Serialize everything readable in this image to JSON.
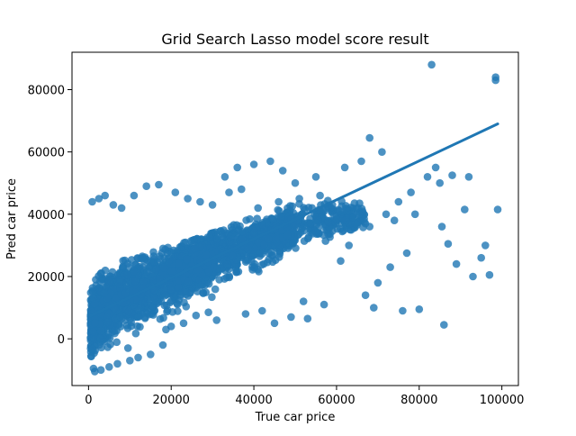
{
  "chart_data": {
    "type": "scatter",
    "title": "Grid Search Lasso model score result",
    "xlabel": "True car price",
    "ylabel": "Pred car price",
    "xlim": [
      -4000,
      104000
    ],
    "ylim": [
      -15000,
      92000
    ],
    "x_ticks": [
      0,
      20000,
      40000,
      60000,
      80000,
      100000
    ],
    "x_tick_labels": [
      "0",
      "20000",
      "40000",
      "60000",
      "80000",
      "100000"
    ],
    "y_ticks": [
      0,
      20000,
      40000,
      60000,
      80000
    ],
    "y_tick_labels": [
      "0",
      "20000",
      "40000",
      "60000",
      "80000"
    ],
    "grid": false,
    "point_color": "#1f77b4",
    "point_alpha": 0.8,
    "regression_line": {
      "x": [
        500,
        99000
      ],
      "y": [
        7400,
        69000
      ],
      "color": "#1f77b4"
    },
    "dense_cluster_description_points": {
      "x": [
        1000,
        3000,
        5000,
        8000,
        10000,
        12000,
        15000,
        18000,
        20000,
        22000,
        25000,
        28000,
        30000,
        33000,
        35000,
        38000,
        40000,
        43000,
        45000,
        48000,
        50000,
        53000,
        55000,
        58000,
        60000,
        63000,
        65000
      ],
      "y_center": [
        6000,
        8000,
        11000,
        13000,
        14500,
        15500,
        17500,
        19500,
        20500,
        21500,
        23000,
        24500,
        25500,
        27000,
        28500,
        30000,
        31000,
        32500,
        33500,
        35000,
        36000,
        37000,
        37500,
        38000,
        38500,
        39000,
        39500
      ],
      "y_spread": [
        12000,
        13000,
        13000,
        12000,
        11000,
        10500,
        10000,
        9500,
        9000,
        9000,
        8500,
        8500,
        8500,
        8000,
        8000,
        8000,
        8000,
        7500,
        7500,
        7500,
        7000,
        7000,
        7000,
        6500,
        6500,
        6000,
        6000
      ]
    },
    "outlier_points": {
      "x": [
        83000,
        98500,
        98500,
        68000,
        99000,
        96000,
        91000,
        85000,
        88000,
        92000,
        95000,
        84000,
        82000,
        78000,
        75000,
        71000,
        66000,
        62000,
        55000,
        50000,
        47000,
        44000,
        40000,
        36000,
        33000,
        76000,
        80000,
        86000,
        89000,
        93000,
        97000,
        70000,
        72000,
        74000,
        68000,
        64000,
        58000,
        60000,
        87000,
        85500,
        79000,
        77000,
        73000,
        69000,
        67000,
        63000,
        61000,
        57000,
        53000,
        52000,
        49000,
        45000,
        42000,
        38000,
        31000,
        29000,
        26000,
        23000,
        20000,
        18000,
        15000,
        12000,
        10000,
        7000,
        5000,
        3000,
        1500,
        1200,
        900,
        2500,
        4000,
        6000,
        8000,
        11000,
        14000,
        17000,
        21000,
        24000,
        27000,
        30000,
        34000,
        37000,
        41000,
        46000,
        51000,
        56000,
        59000,
        62500,
        65500
      ],
      "y": [
        88000,
        84000,
        83000,
        64500,
        41500,
        30000,
        41500,
        50000,
        52500,
        52000,
        26000,
        55000,
        52000,
        47000,
        44000,
        60000,
        57000,
        55000,
        52000,
        50000,
        54000,
        57000,
        56000,
        55000,
        52000,
        9000,
        9500,
        4500,
        24000,
        20000,
        20500,
        18000,
        40000,
        38000,
        36000,
        39000,
        37500,
        38500,
        30500,
        36000,
        40000,
        27500,
        23000,
        10000,
        14000,
        30000,
        25000,
        11000,
        6500,
        12000,
        7000,
        5000,
        9000,
        8000,
        6000,
        8500,
        7500,
        5000,
        4000,
        -2000,
        -5000,
        -6000,
        -7000,
        -8000,
        -9000,
        -10000,
        -10500,
        -9500,
        44000,
        45000,
        46000,
        43000,
        42000,
        46000,
        49000,
        49500,
        47000,
        45000,
        44000,
        43000,
        47000,
        48000,
        42000,
        44000,
        45000,
        46000,
        43000,
        41000,
        40000
      ]
    }
  }
}
